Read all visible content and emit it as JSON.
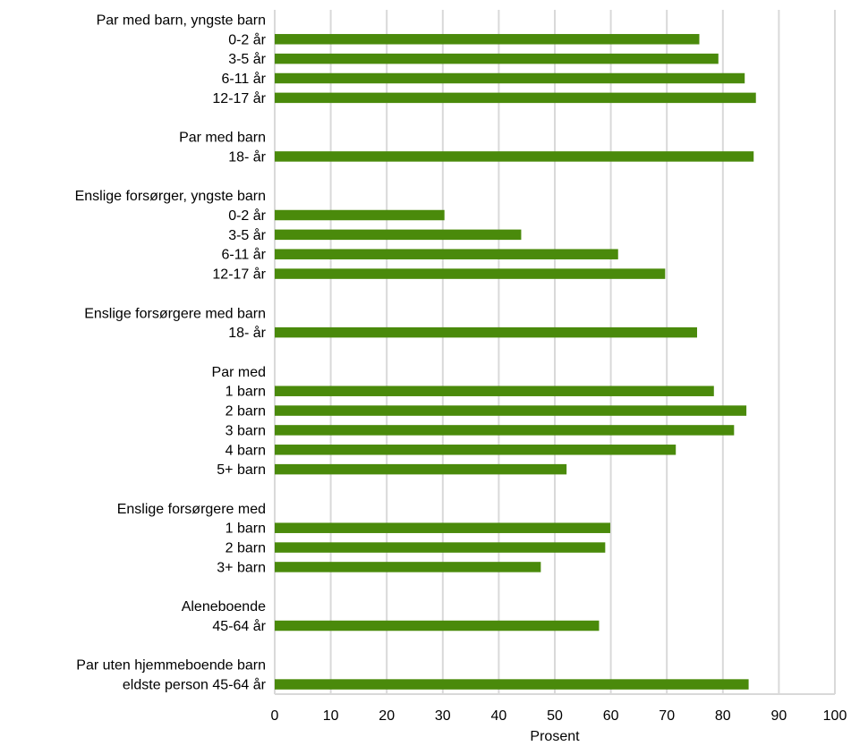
{
  "chart_data": {
    "type": "bar",
    "orientation": "horizontal",
    "xlabel": "Prosent",
    "xlim": [
      0,
      100
    ],
    "xticks": [
      "0",
      "10",
      "20",
      "30",
      "40",
      "50",
      "60",
      "70",
      "80",
      "90",
      "100"
    ],
    "grid": true,
    "bar_color": "#4a8a0b",
    "grid_color": "#d9d9d9",
    "rows": [
      {
        "label": "Par med barn, yngste barn",
        "value": null
      },
      {
        "label": "0-2 år",
        "value": 75.8
      },
      {
        "label": "3-5 år",
        "value": 79.2
      },
      {
        "label": "6-11 år",
        "value": 83.9
      },
      {
        "label": "12-17 år",
        "value": 85.9
      },
      {
        "label": "",
        "value": null
      },
      {
        "label": "Par med barn",
        "value": null
      },
      {
        "label": "18- år",
        "value": 85.5
      },
      {
        "label": "",
        "value": null
      },
      {
        "label": "Enslige forsørger, yngste barn",
        "value": null
      },
      {
        "label": "0-2 år",
        "value": 30.3
      },
      {
        "label": "3-5 år",
        "value": 44.0
      },
      {
        "label": "6-11 år",
        "value": 61.3
      },
      {
        "label": "12-17 år",
        "value": 69.7
      },
      {
        "label": "",
        "value": null
      },
      {
        "label": "Enslige forsørgere med barn",
        "value": null
      },
      {
        "label": "18- år",
        "value": 75.4
      },
      {
        "label": "",
        "value": null
      },
      {
        "label": "Par med",
        "value": null
      },
      {
        "label": "1 barn",
        "value": 78.4
      },
      {
        "label": "2 barn",
        "value": 84.2
      },
      {
        "label": "3 barn",
        "value": 82.0
      },
      {
        "label": "4 barn",
        "value": 71.6
      },
      {
        "label": "5+ barn",
        "value": 52.1
      },
      {
        "label": "",
        "value": null
      },
      {
        "label": "Enslige forsørgere med",
        "value": null
      },
      {
        "label": "1 barn",
        "value": 59.9
      },
      {
        "label": "2 barn",
        "value": 59.0
      },
      {
        "label": "3+ barn",
        "value": 47.5
      },
      {
        "label": "",
        "value": null
      },
      {
        "label": "Aleneboende",
        "value": null
      },
      {
        "label": "45-64 år",
        "value": 57.9
      },
      {
        "label": "",
        "value": null
      },
      {
        "label": "Par uten hjemmeboende barn",
        "value": null
      },
      {
        "label": "eldste person 45-64 år",
        "value": 84.6
      }
    ]
  }
}
